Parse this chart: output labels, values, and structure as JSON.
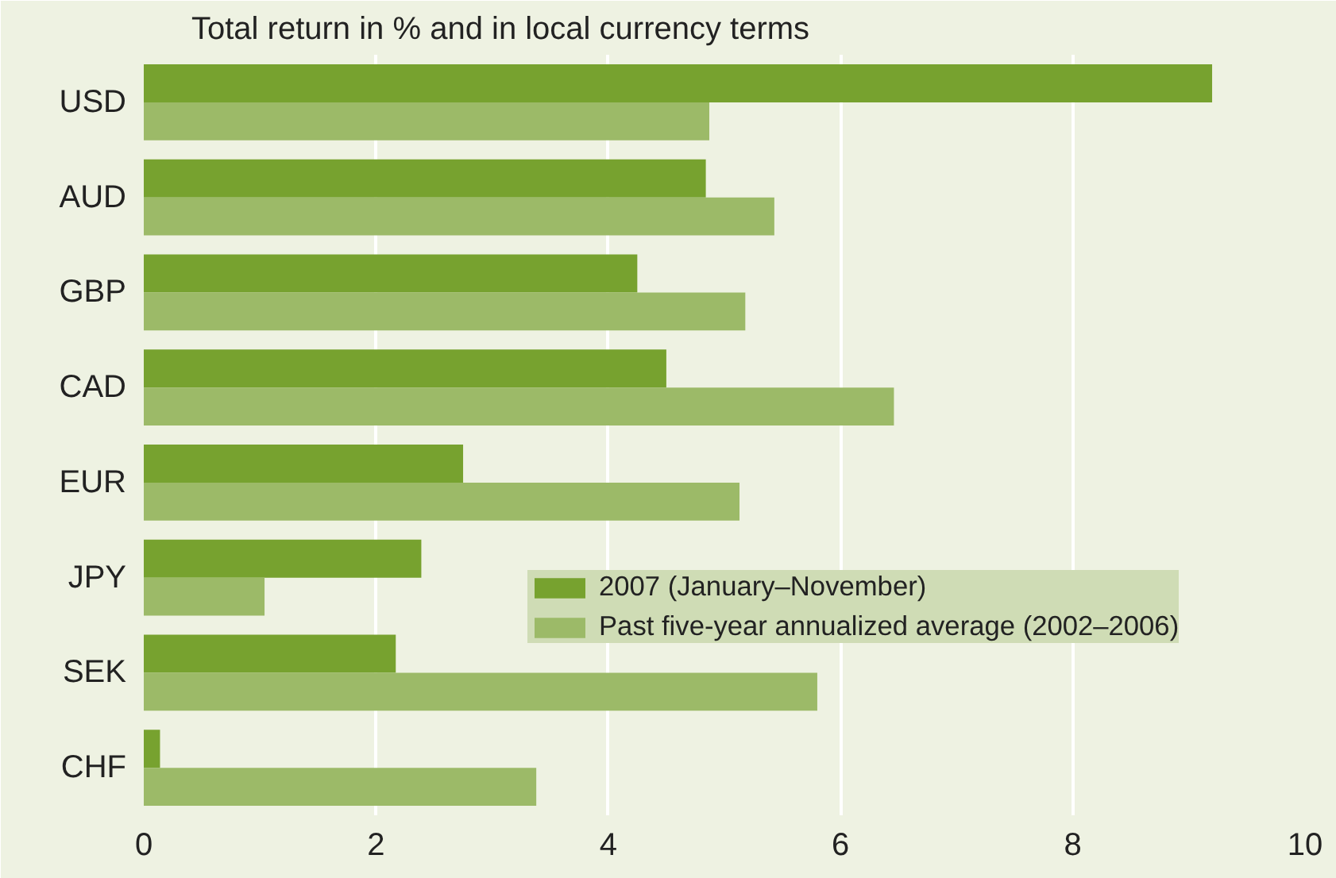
{
  "chart_data": {
    "type": "bar",
    "orientation": "horizontal",
    "title": "Total return in % and in local currency terms",
    "categories": [
      "USD",
      "AUD",
      "GBP",
      "CAD",
      "EUR",
      "JPY",
      "SEK",
      "CHF"
    ],
    "series": [
      {
        "name": "2007 (January–November)",
        "color": "#77a22f",
        "values": [
          9.2,
          4.84,
          4.25,
          4.5,
          2.75,
          2.39,
          2.17,
          0.14
        ]
      },
      {
        "name": "Past five-year annualized average (2002–2006)",
        "color": "#9cba68",
        "values": [
          4.87,
          5.43,
          5.18,
          6.46,
          5.13,
          1.04,
          5.8,
          3.38
        ]
      }
    ],
    "xlim": [
      0,
      10
    ],
    "xticks": [
      0,
      2,
      4,
      6,
      8,
      10
    ],
    "grid": "x",
    "legend": "right"
  }
}
